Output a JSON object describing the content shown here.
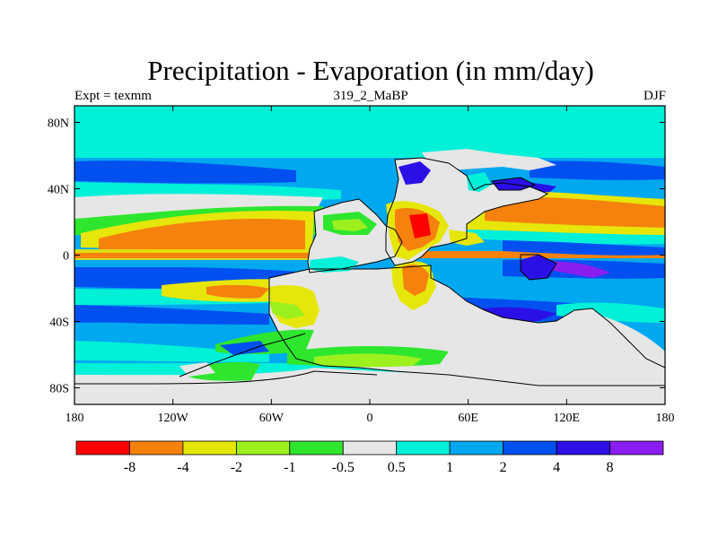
{
  "title": "Precipitation - Evaporation (in mm/day)",
  "subtitle_left": "Expt = texmm",
  "subtitle_center": "319_2_MaBP",
  "subtitle_right": "DJF",
  "map": {
    "lon_range": [
      -180,
      180
    ],
    "lat_range": [
      -90,
      90
    ],
    "x_ticks": [
      {
        "lon": -180,
        "label": "180"
      },
      {
        "lon": -120,
        "label": "120W"
      },
      {
        "lon": -60,
        "label": "60W"
      },
      {
        "lon": 0,
        "label": "0"
      },
      {
        "lon": 60,
        "label": "60E"
      },
      {
        "lon": 120,
        "label": "120E"
      },
      {
        "lon": 180,
        "label": "180"
      }
    ],
    "y_ticks": [
      {
        "lat": 80,
        "label": "80N"
      },
      {
        "lat": 40,
        "label": "40N"
      },
      {
        "lat": 0,
        "label": "0"
      },
      {
        "lat": -40,
        "label": "40S"
      },
      {
        "lat": -80,
        "label": "80S"
      }
    ]
  },
  "colorbar": {
    "colors": [
      "#ff0000",
      "#f4820d",
      "#e6e60a",
      "#9cf01e",
      "#2ee62e",
      "#e6e6e6",
      "#00f0d8",
      "#00a8f0",
      "#0050f0",
      "#2a10e6",
      "#8a1ef0"
    ],
    "labels": [
      "-8",
      "-4",
      "-2",
      "-1",
      "-0.5",
      "0.5",
      "1",
      "2",
      "4",
      "8"
    ]
  }
}
